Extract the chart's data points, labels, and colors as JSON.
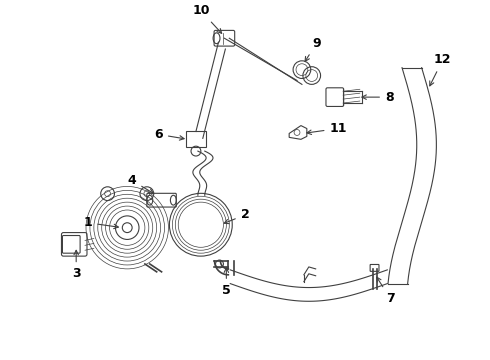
{
  "bg_color": "#ffffff",
  "line_color": "#404040",
  "label_color": "#000000",
  "fig_width": 4.9,
  "fig_height": 3.6,
  "dpi": 100
}
